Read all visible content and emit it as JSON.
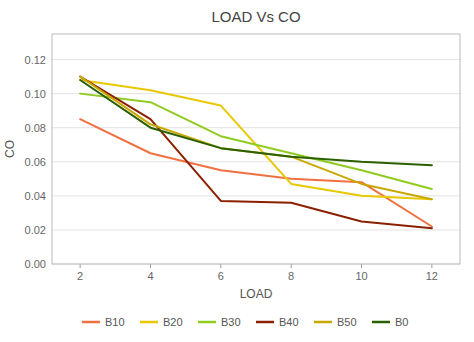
{
  "chart_data": {
    "type": "line",
    "title": "LOAD Vs CO",
    "xlabel": "LOAD",
    "ylabel": "CO",
    "x": [
      2,
      4,
      6,
      8,
      10,
      12
    ],
    "series": [
      {
        "name": "B10",
        "color": "#F07040",
        "values": [
          0.085,
          0.065,
          0.055,
          0.05,
          0.048,
          0.022
        ]
      },
      {
        "name": "B20",
        "color": "#E8C800",
        "values": [
          0.108,
          0.102,
          0.093,
          0.047,
          0.04,
          0.038
        ]
      },
      {
        "name": "B30",
        "color": "#90CC20",
        "values": [
          0.1,
          0.095,
          0.075,
          0.065,
          0.055,
          0.044
        ]
      },
      {
        "name": "B40",
        "color": "#8B2000",
        "values": [
          0.11,
          0.085,
          0.037,
          0.036,
          0.025,
          0.021
        ]
      },
      {
        "name": "B50",
        "color": "#C8A800",
        "values": [
          0.11,
          0.082,
          0.068,
          0.063,
          0.047,
          0.038
        ]
      },
      {
        "name": "B0",
        "color": "#2A6000",
        "values": [
          0.108,
          0.08,
          0.068,
          0.063,
          0.06,
          0.058
        ]
      }
    ],
    "xlim": [
      1.2,
      12.8
    ],
    "xticks": [
      2,
      4,
      6,
      8,
      10,
      12
    ],
    "ylim": [
      0,
      0.135
    ],
    "yticks": [
      {
        "value": 0,
        "label": "0.00"
      },
      {
        "value": 0.02,
        "label": "0.02"
      },
      {
        "value": 0.04,
        "label": "0.04"
      },
      {
        "value": 0.06,
        "label": "0.06"
      },
      {
        "value": 0.08,
        "label": "0.08"
      },
      {
        "value": 0.1,
        "label": "0.10"
      },
      {
        "value": 0.12,
        "label": "0.12"
      }
    ],
    "grid": true,
    "legend": "bottom"
  }
}
